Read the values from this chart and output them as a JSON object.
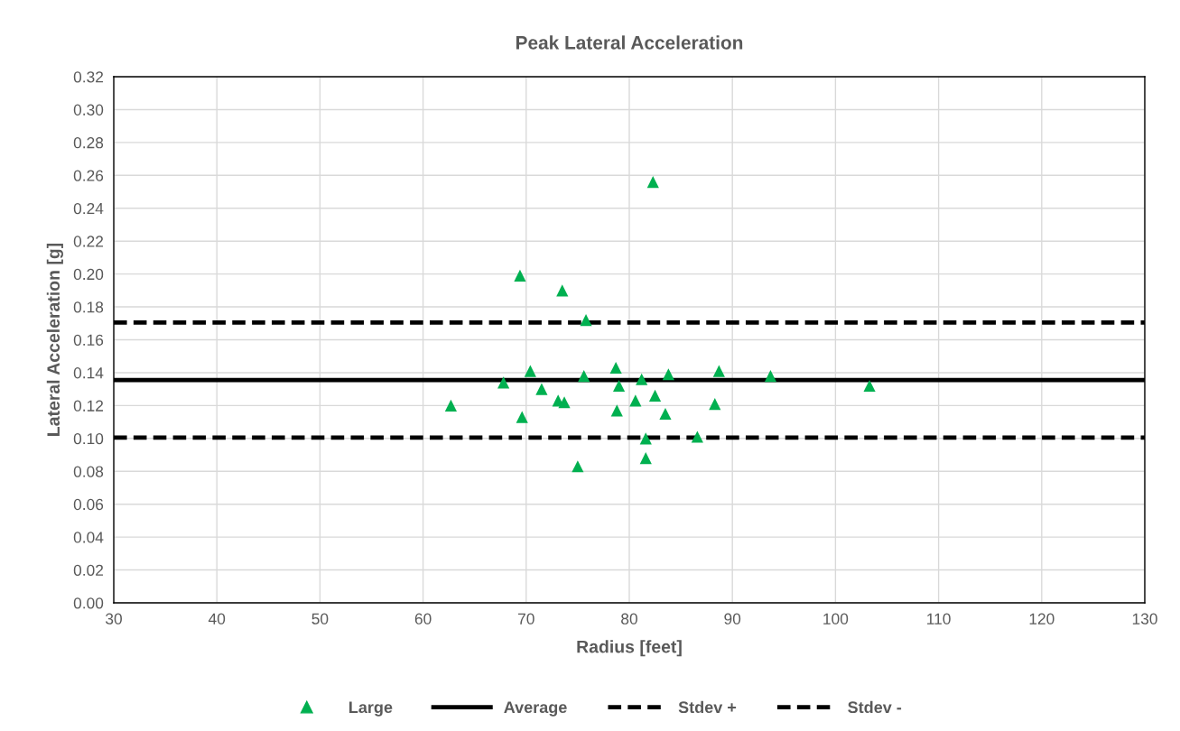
{
  "chart_data": {
    "type": "scatter",
    "title": "Peak Lateral Acceleration",
    "xlabel": "Radius [feet]",
    "ylabel": "Lateral Acceleration [g]",
    "xlim": [
      30,
      130
    ],
    "xticks": [
      30,
      40,
      50,
      60,
      70,
      80,
      90,
      100,
      110,
      120,
      130
    ],
    "ylim": [
      0,
      0.32
    ],
    "yticks": [
      {
        "value": 0,
        "label": "0.00"
      },
      {
        "value": 0.02,
        "label": "0.02"
      },
      {
        "value": 0.04,
        "label": "0.04"
      },
      {
        "value": 0.06,
        "label": "0.06"
      },
      {
        "value": 0.08,
        "label": "0.08"
      },
      {
        "value": 0.1,
        "label": "0.10"
      },
      {
        "value": 0.12,
        "label": "0.12"
      },
      {
        "value": 0.14,
        "label": "0.14"
      },
      {
        "value": 0.16,
        "label": "0.16"
      },
      {
        "value": 0.18,
        "label": "0.18"
      },
      {
        "value": 0.2,
        "label": "0.20"
      },
      {
        "value": 0.22,
        "label": "0.22"
      },
      {
        "value": 0.24,
        "label": "0.24"
      },
      {
        "value": 0.26,
        "label": "0.26"
      },
      {
        "value": 0.28,
        "label": "0.28"
      },
      {
        "value": 0.3,
        "label": "0.30"
      },
      {
        "value": 0.32,
        "label": "0.32"
      }
    ],
    "grid": true,
    "legend": "bottom",
    "series": [
      {
        "name": "Large",
        "marker": "triangle",
        "color": "#00b050",
        "x": [
          62.7,
          67.8,
          69.4,
          69.6,
          70.4,
          71.5,
          73.1,
          73.5,
          73.7,
          75.0,
          75.6,
          75.8,
          78.7,
          78.8,
          79.0,
          80.6,
          81.2,
          81.6,
          81.6,
          82.3,
          82.5,
          83.5,
          83.8,
          86.6,
          88.3,
          88.7,
          93.7,
          103.3
        ],
        "values": [
          0.12,
          0.134,
          0.199,
          0.113,
          0.141,
          0.13,
          0.123,
          0.19,
          0.122,
          0.083,
          0.138,
          0.172,
          0.143,
          0.117,
          0.132,
          0.123,
          0.136,
          0.1,
          0.088,
          0.256,
          0.126,
          0.115,
          0.139,
          0.101,
          0.121,
          0.141,
          0.138,
          0.132
        ]
      },
      {
        "name": "Average",
        "type": "line",
        "line_style": "solid",
        "color": "#000000",
        "x": [
          30,
          130
        ],
        "values": [
          0.1355,
          0.1355
        ]
      },
      {
        "name": "Stdev +",
        "type": "line",
        "line_style": "dashed",
        "color": "#000000",
        "x": [
          30,
          130
        ],
        "values": [
          0.1705,
          0.1705
        ]
      },
      {
        "name": "Stdev -",
        "type": "line",
        "line_style": "dashed",
        "color": "#000000",
        "x": [
          30,
          130
        ],
        "values": [
          0.1005,
          0.1005
        ]
      }
    ]
  }
}
